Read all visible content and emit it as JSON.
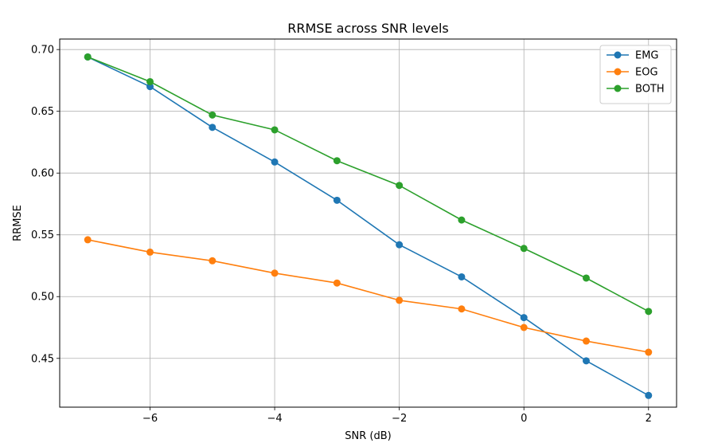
{
  "chart_data": {
    "type": "line",
    "title": "RRMSE across SNR levels",
    "xlabel": "SNR (dB)",
    "ylabel": "RRMSE",
    "x": [
      -7,
      -6,
      -5,
      -4,
      -3,
      -2,
      -1,
      0,
      1,
      2
    ],
    "xlim": [
      -7.45,
      2.45
    ],
    "ylim": [
      0.4105,
      0.7085
    ],
    "xticks": [
      -6,
      -4,
      -2,
      0,
      2
    ],
    "xtick_labels": [
      "−6",
      "−4",
      "−2",
      "0",
      "2"
    ],
    "yticks": [
      0.45,
      0.5,
      0.55,
      0.6,
      0.65,
      0.7
    ],
    "ytick_labels": [
      "0.45",
      "0.50",
      "0.55",
      "0.60",
      "0.65",
      "0.70"
    ],
    "grid": true,
    "legend_position": "top-right",
    "series": [
      {
        "name": "EMG",
        "color": "#1f77b4",
        "values": [
          0.694,
          0.67,
          0.637,
          0.609,
          0.578,
          0.542,
          0.516,
          0.483,
          0.448,
          0.42
        ]
      },
      {
        "name": "EOG",
        "color": "#ff7f0e",
        "values": [
          0.546,
          0.536,
          0.529,
          0.519,
          0.511,
          0.497,
          0.49,
          0.475,
          0.464,
          0.455
        ]
      },
      {
        "name": "BOTH",
        "color": "#2ca02c",
        "values": [
          0.694,
          0.674,
          0.647,
          0.635,
          0.61,
          0.59,
          0.562,
          0.539,
          0.515,
          0.488
        ]
      }
    ]
  }
}
